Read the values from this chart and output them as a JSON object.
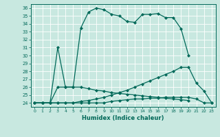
{
  "xlabel": "Humidex (Indice chaleur)",
  "background_color": "#c8e8e0",
  "line_color": "#006858",
  "xlim": [
    -0.5,
    23.5
  ],
  "ylim": [
    23.5,
    36.5
  ],
  "yticks": [
    24,
    25,
    26,
    27,
    28,
    29,
    30,
    31,
    32,
    33,
    34,
    35,
    36
  ],
  "xticks": [
    0,
    1,
    2,
    3,
    4,
    5,
    6,
    7,
    8,
    9,
    10,
    11,
    12,
    13,
    14,
    15,
    16,
    17,
    18,
    19,
    20,
    21,
    22,
    23
  ],
  "series": [
    {
      "x": [
        0,
        1,
        2,
        3,
        4,
        5,
        6,
        7,
        8,
        9,
        10,
        11,
        12,
        13,
        14,
        15,
        16,
        17,
        18,
        19,
        20,
        21,
        22,
        23
      ],
      "y": [
        24,
        24,
        24,
        31,
        26,
        26,
        33.5,
        35.5,
        36,
        35.8,
        35.2,
        35.0,
        34.3,
        34.2,
        35.2,
        35.2,
        35.3,
        34.8,
        34.8,
        33.4,
        30.0,
        null,
        null,
        null
      ]
    },
    {
      "x": [
        0,
        1,
        2,
        3,
        4,
        5,
        6,
        7,
        8,
        9,
        10,
        11,
        12,
        13,
        14,
        15,
        16,
        17,
        18,
        19,
        20,
        21,
        22,
        23
      ],
      "y": [
        24,
        24,
        24,
        26,
        26,
        26,
        26,
        25.8,
        25.6,
        25.5,
        25.3,
        25.2,
        25.1,
        25.0,
        24.9,
        24.8,
        24.7,
        24.6,
        24.5,
        24.4,
        24.3,
        null,
        null,
        null
      ]
    },
    {
      "x": [
        0,
        1,
        2,
        3,
        4,
        5,
        6,
        7,
        8,
        9,
        10,
        11,
        12,
        13,
        14,
        15,
        16,
        17,
        18,
        19,
        20,
        21,
        22,
        23
      ],
      "y": [
        24,
        24,
        24,
        24,
        24,
        24,
        24.2,
        24.3,
        24.5,
        24.7,
        25.0,
        25.3,
        25.6,
        26.0,
        26.4,
        26.8,
        27.2,
        27.6,
        28.0,
        28.5,
        28.5,
        26.5,
        25.5,
        24.0
      ]
    },
    {
      "x": [
        0,
        1,
        2,
        3,
        4,
        5,
        6,
        7,
        8,
        9,
        10,
        11,
        12,
        13,
        14,
        15,
        16,
        17,
        18,
        19,
        20,
        21,
        22,
        23
      ],
      "y": [
        24,
        24,
        24,
        24,
        24,
        24,
        24,
        24,
        24,
        24,
        24.2,
        24.3,
        24.4,
        24.5,
        24.5,
        24.6,
        24.6,
        24.7,
        24.7,
        24.7,
        24.7,
        24.5,
        24.0,
        24.0
      ]
    }
  ]
}
